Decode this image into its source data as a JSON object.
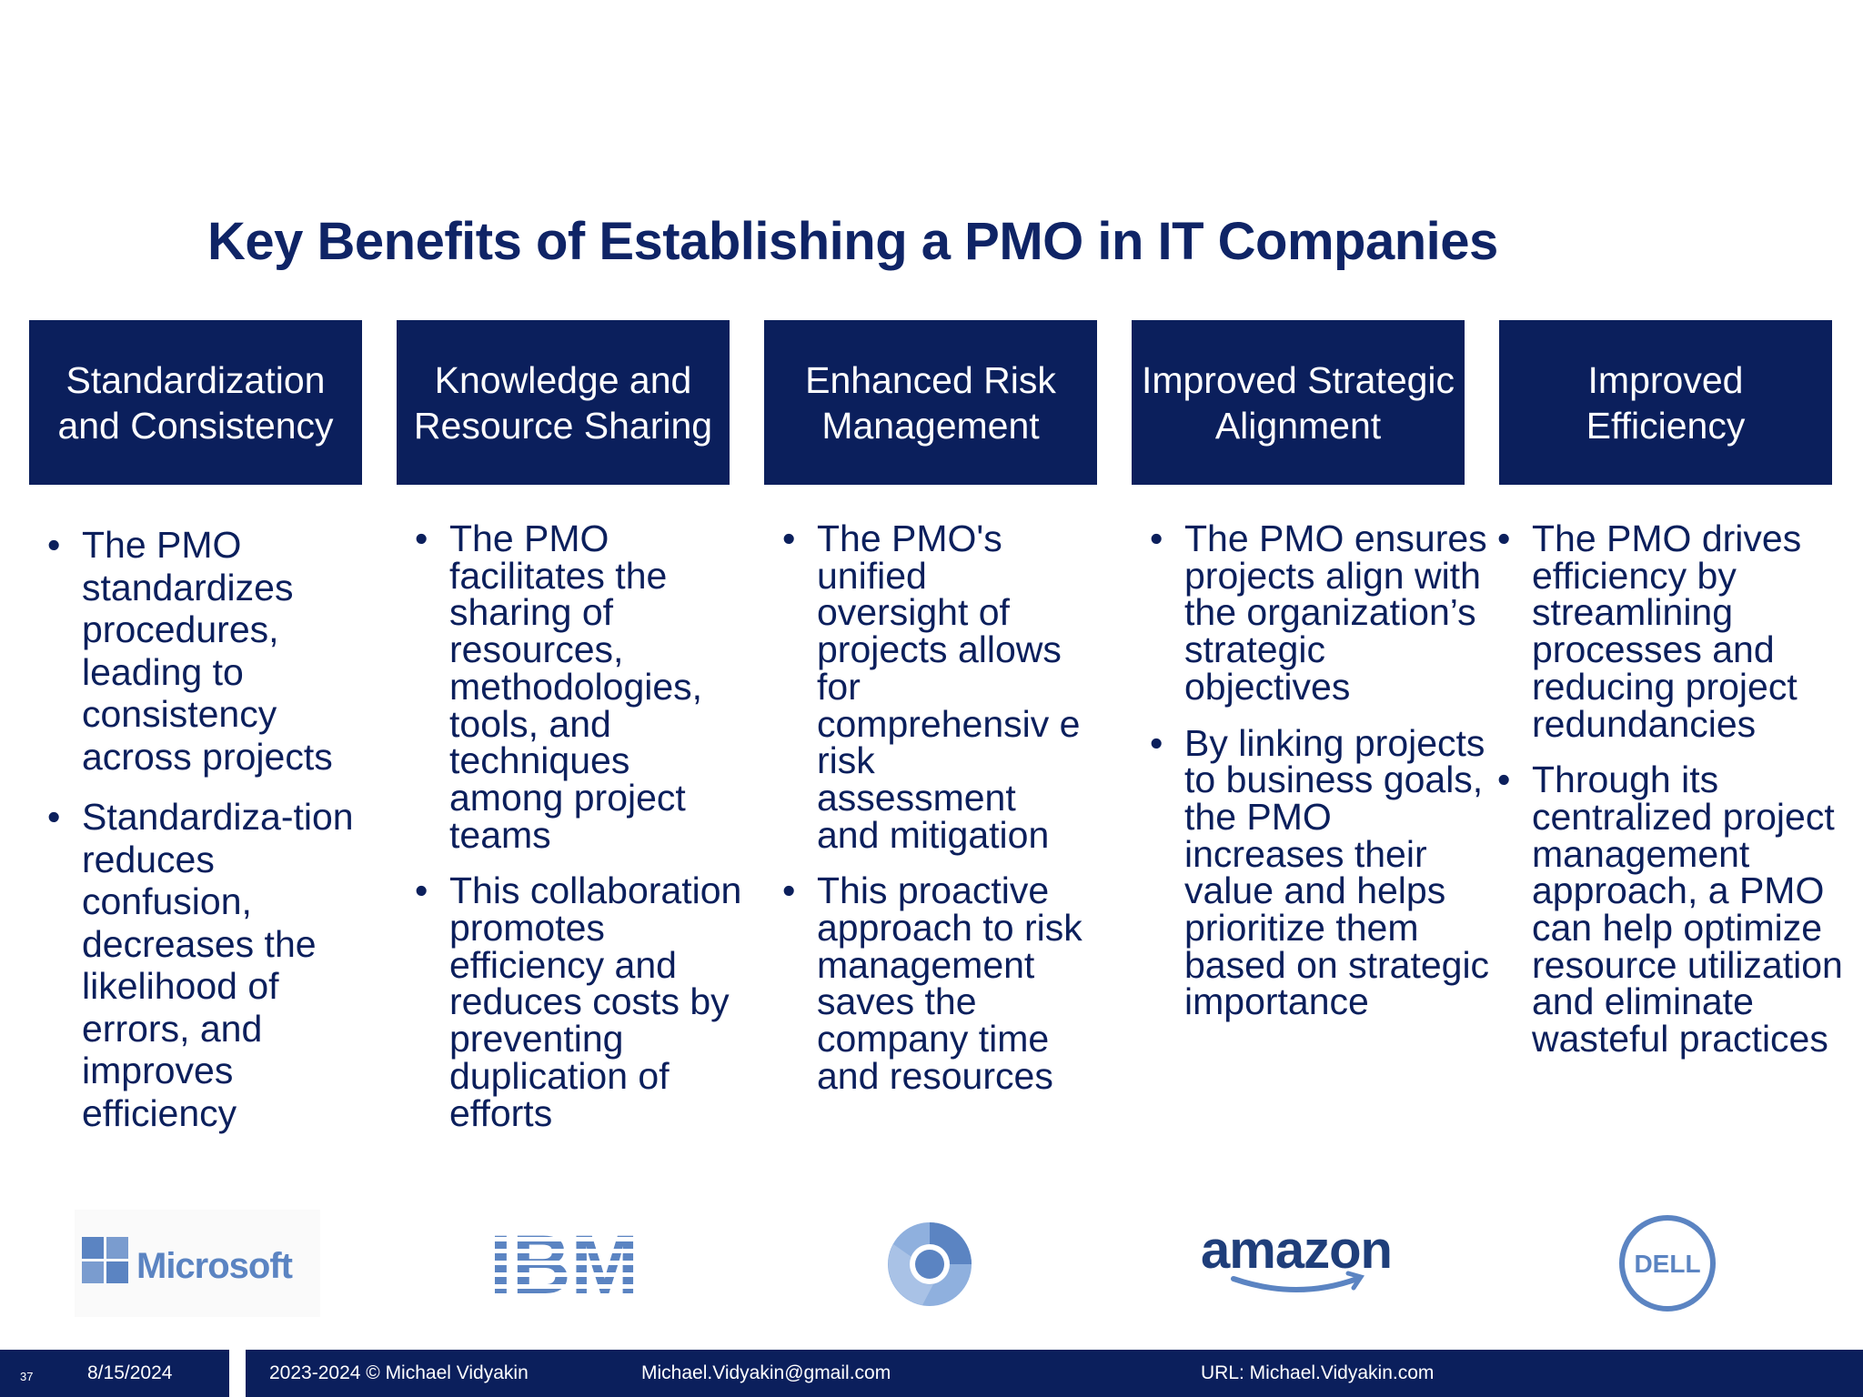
{
  "slide": {
    "title": "Key Benefits of Establishing a PMO in IT Companies"
  },
  "columns": [
    {
      "heading": "Standardization and Consistency",
      "bullets": [
        "The PMO standardizes procedures, leading to consistency across projects",
        "Standardiza-tion reduces confusion, decreases the likelihood of errors, and improves efficiency"
      ]
    },
    {
      "heading": "Knowledge and Resource Sharing",
      "bullets": [
        "The PMO facilitates the sharing of resources, methodologies, tools, and techniques among project teams",
        "This collaboration promotes efficiency and reduces costs by preventing duplication of efforts"
      ]
    },
    {
      "heading": "Enhanced Risk Management",
      "bullets": [
        "The PMO's unified oversight of projects allows for comprehensiv e risk assessment and mitigation",
        "This proactive approach to risk management saves the company time and resources"
      ]
    },
    {
      "heading": "Improved Strategic Alignment",
      "bullets": [
        "The PMO ensures projects align with the organization’s strategic objectives",
        "By linking projects to business goals, the PMO increases their value and helps prioritize them based on strategic importance"
      ]
    },
    {
      "heading": "Improved Efficiency",
      "bullets": [
        "The PMO drives efficiency by streamlining processes and reducing project redundancies",
        "Through its centralized project management approach, a PMO can help optimize resource utilization and eliminate wasteful practices"
      ]
    }
  ],
  "logos": {
    "microsoft": "Microsoft",
    "ibm": "IBM",
    "chrome": "chrome-logo-icon",
    "amazon": "amazon",
    "dell": "DELL"
  },
  "footer": {
    "slide_number": "37",
    "date": "8/15/2024",
    "copyright": "2023-2024 © Michael Vidyakin",
    "email": "Michael.Vidyakin@gmail.com",
    "url": "URL: Michael.Vidyakin.com"
  },
  "colors": {
    "navy": "#0b1f5c",
    "title": "#0f2466",
    "logo_blue": "#5b84c2",
    "amazon_navy": "#1f3e7a"
  }
}
